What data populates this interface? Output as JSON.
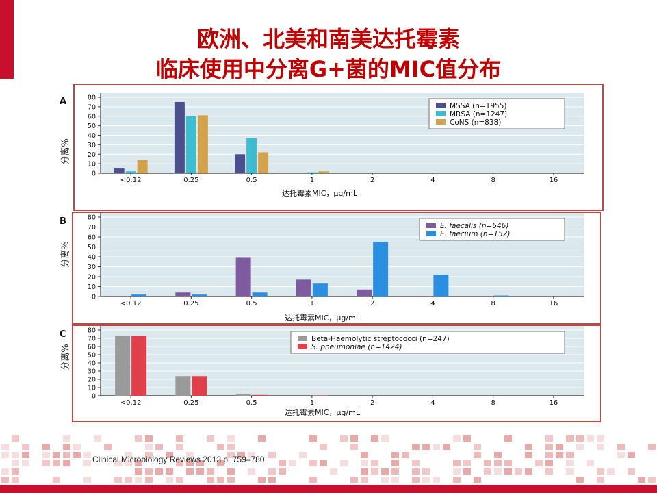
{
  "title_line1": "欧洲、北美和南美达托霉素",
  "title_line2": "临床使用中分离G+菌的MIC值分布",
  "citation": "Clinical Microbiology Reviews 2013 p. 759–780",
  "colors": {
    "accent": "#c8102e",
    "title": "#c00000",
    "frame": "#b84a4a",
    "plot_bg": "#dbe9ef"
  },
  "chart_data": [
    {
      "panel_label": "A",
      "type": "bar",
      "categories": [
        "<0.12",
        "0.25",
        "0.5",
        "1",
        "2",
        "4",
        "8",
        "16"
      ],
      "ylim": [
        0,
        80
      ],
      "yticks": [
        0,
        10,
        20,
        30,
        40,
        50,
        60,
        70,
        80
      ],
      "ylabel": "分离%",
      "xlabel": "达托霉素MIC，μg/mL",
      "legend_position": "top-right",
      "grid": true,
      "series": [
        {
          "name": "MSSA (n=1955)",
          "color": "#4b4f8c",
          "values": [
            5,
            75,
            20,
            0,
            0,
            0,
            0,
            0
          ]
        },
        {
          "name": "MRSA (n=1247)",
          "color": "#3fbcd0",
          "values": [
            2,
            60,
            37,
            1,
            0,
            0,
            0,
            0
          ]
        },
        {
          "name": "CoNS (n=838)",
          "color": "#d2a24c",
          "values": [
            14,
            61,
            22,
            2,
            0,
            0,
            0,
            0
          ]
        }
      ]
    },
    {
      "panel_label": "B",
      "type": "bar",
      "categories": [
        "<0.12",
        "0.25",
        "0.5",
        "1",
        "2",
        "4",
        "8",
        "16"
      ],
      "ylim": [
        0,
        80
      ],
      "yticks": [
        0,
        10,
        20,
        30,
        40,
        50,
        60,
        70,
        80
      ],
      "ylabel": "分离%",
      "xlabel": "达托霉素MIC，μg/mL",
      "legend_position": "top-right",
      "grid": true,
      "series": [
        {
          "name": "E. faecalis (n=646)",
          "color": "#7e5a9e",
          "values": [
            0.5,
            4,
            39,
            17,
            7,
            0.5,
            0,
            0
          ]
        },
        {
          "name": "E. faecium (n=152)",
          "color": "#2a8fe0",
          "values": [
            2,
            2,
            4,
            13,
            55,
            22,
            1,
            0
          ]
        }
      ]
    },
    {
      "panel_label": "C",
      "type": "bar",
      "categories": [
        "<0.12",
        "0.25",
        "0.5",
        "1",
        "2",
        "4",
        "8",
        "16"
      ],
      "ylim": [
        0,
        80
      ],
      "yticks": [
        0,
        10,
        20,
        30,
        40,
        50,
        60,
        70,
        80
      ],
      "ylabel": "分离%",
      "xlabel": "达托霉素MIC，μg/mL",
      "legend_position": "top-right",
      "grid": true,
      "series": [
        {
          "name": "Beta-Haemolytic streptococci (n=247)",
          "color": "#9a9a9a",
          "values": [
            73,
            24,
            2,
            0,
            0,
            0,
            0,
            0
          ]
        },
        {
          "name": "S. pneumoniae (n=1424)",
          "color": "#e0404a",
          "values": [
            73,
            24,
            1,
            0.5,
            0,
            0,
            0,
            0
          ]
        }
      ]
    }
  ]
}
